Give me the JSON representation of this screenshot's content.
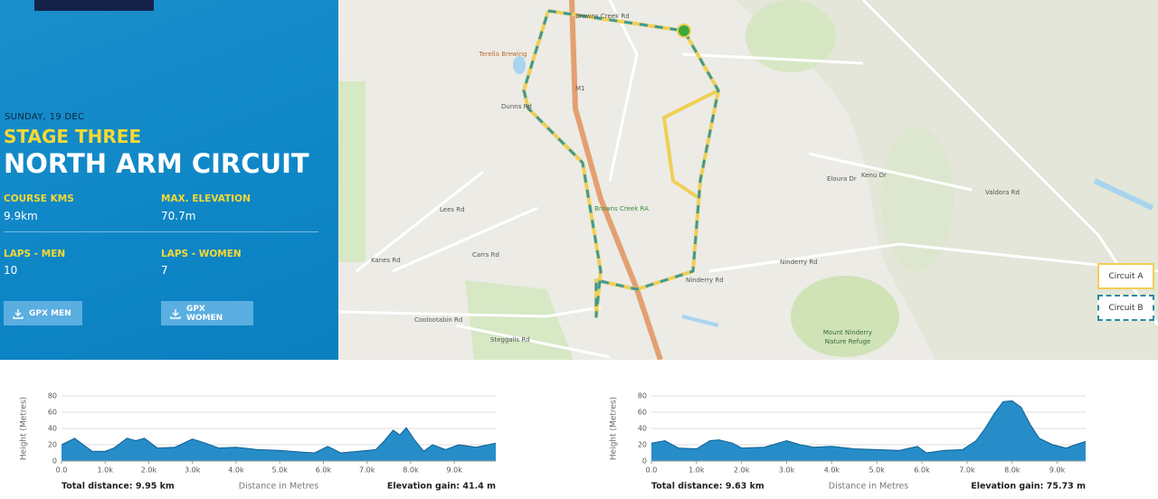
{
  "panel": {
    "date": "SUNDAY, 19 DEC",
    "stage": "STAGE THREE",
    "title": "NORTH ARM CIRCUIT",
    "stats": [
      {
        "label": "COURSE KMS",
        "value": "9.9km"
      },
      {
        "label": "MAX. ELEVATION",
        "value": "70.7m"
      },
      {
        "label": "LAPS - MEN",
        "value": "10"
      },
      {
        "label": "LAPS - WOMEN",
        "value": "7"
      }
    ],
    "buttons": [
      "GPX MEN",
      "GPX WOMEN"
    ]
  },
  "map": {
    "labels": [
      "Terella Brewing",
      "Browns Creek RA",
      "Mount Ninderry",
      "Nature Refuge",
      "Lees Rd",
      "Kanes Rd",
      "Carrs Rd",
      "Coolootabin Rd",
      "Steggalls Rd",
      "Ninderry Rd",
      "Kenu Dr",
      "Eloura Dr",
      "Valdora Rd",
      "Dunns Rd",
      "Ninderry Rd",
      "Browns Creek Rd",
      "M1"
    ],
    "legend": [
      "Circuit A",
      "Circuit B"
    ]
  },
  "profiles": [
    {
      "total": "Total distance: 9.95 km",
      "gain": "Elevation gain: 41.4 m"
    },
    {
      "total": "Total distance: 9.63 km",
      "gain": "Elevation gain: 75.73 m"
    }
  ],
  "chart_data": [
    {
      "type": "area",
      "y_label": "Height (Metres)",
      "x_label": "Distance in Metres",
      "color": "#1b87c6",
      "x": [
        0,
        300,
        700,
        1000,
        1200,
        1500,
        1700,
        1900,
        2200,
        2600,
        3000,
        3300,
        3600,
        4000,
        4500,
        5000,
        5500,
        5800,
        6100,
        6400,
        6800,
        7200,
        7400,
        7600,
        7750,
        7900,
        8100,
        8300,
        8500,
        8800,
        9100,
        9500,
        9950
      ],
      "values": [
        20,
        28,
        12,
        12,
        16,
        28,
        25,
        28,
        16,
        17,
        27,
        22,
        16,
        17,
        14,
        13,
        11,
        10,
        18,
        10,
        12,
        14,
        25,
        38,
        32,
        41,
        25,
        12,
        20,
        14,
        20,
        17,
        22
      ],
      "xlim": [
        0,
        9950
      ],
      "ylim": [
        0,
        80
      ],
      "yticks": [
        0,
        20,
        40,
        60,
        80
      ],
      "xticks": [
        {
          "value": 0,
          "label": "0.0"
        },
        {
          "value": 1000,
          "label": "1.0k"
        },
        {
          "value": 2000,
          "label": "2.0k"
        },
        {
          "value": 3000,
          "label": "3.0k"
        },
        {
          "value": 4000,
          "label": "4.0k"
        },
        {
          "value": 5000,
          "label": "5.0k"
        },
        {
          "value": 6000,
          "label": "6.0k"
        },
        {
          "value": 7000,
          "label": "7.0k"
        },
        {
          "value": 8000,
          "label": "8.0k"
        },
        {
          "value": 9000,
          "label": "9.0k"
        }
      ],
      "grid": true
    },
    {
      "type": "area",
      "y_label": "Height (Metres)",
      "x_label": "Distance in Metres",
      "color": "#1b87c6",
      "x": [
        0,
        300,
        600,
        1000,
        1300,
        1500,
        1800,
        2000,
        2500,
        3000,
        3300,
        3600,
        4000,
        4500,
        5000,
        5500,
        5900,
        6100,
        6500,
        6900,
        7200,
        7400,
        7600,
        7800,
        8000,
        8200,
        8400,
        8600,
        8900,
        9200,
        9400,
        9630
      ],
      "values": [
        22,
        25,
        16,
        15,
        25,
        26,
        22,
        16,
        17,
        25,
        20,
        17,
        18,
        15,
        14,
        13,
        18,
        10,
        13,
        14,
        25,
        40,
        58,
        73,
        74,
        66,
        45,
        28,
        20,
        16,
        20,
        24
      ],
      "xlim": [
        0,
        9630
      ],
      "ylim": [
        0,
        80
      ],
      "yticks": [
        0,
        20,
        40,
        60,
        80
      ],
      "xticks": [
        {
          "value": 0,
          "label": "0.0"
        },
        {
          "value": 1000,
          "label": "1.0k"
        },
        {
          "value": 2000,
          "label": "2.0k"
        },
        {
          "value": 3000,
          "label": "3.0k"
        },
        {
          "value": 4000,
          "label": "4.0k"
        },
        {
          "value": 5000,
          "label": "5.0k"
        },
        {
          "value": 6000,
          "label": "6.0k"
        },
        {
          "value": 7000,
          "label": "7.0k"
        },
        {
          "value": 8000,
          "label": "8.0k"
        },
        {
          "value": 9000,
          "label": "9.0k"
        }
      ],
      "grid": true
    }
  ]
}
